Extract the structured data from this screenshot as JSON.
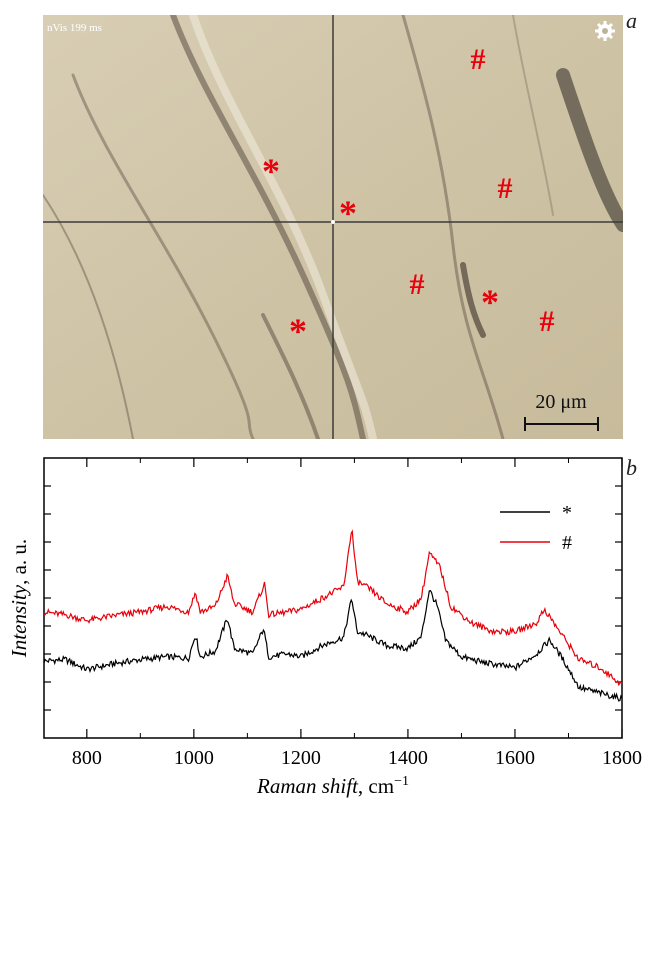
{
  "panel_a": {
    "label": "a",
    "acq_text": "nVis 199 ms",
    "icon": "gear-icon",
    "scale_bar_text": "20 μm",
    "asterisk_label": "*",
    "hash_label": "#",
    "marker_color": "#e8000b"
  },
  "panel_b_label": "b",
  "chart_data": {
    "type": "line",
    "xlabel_italic": "Raman shift",
    "xlabel_unit": ", cm",
    "xlabel_sup": "−1",
    "ylabel_italic": "Intensity",
    "ylabel_unit": ", a. u.",
    "xlim": [
      720,
      1800
    ],
    "xticks": [
      800,
      1000,
      1200,
      1400,
      1600,
      1800
    ],
    "y_tick_labels": "none",
    "legend_position": "top-right",
    "series": [
      {
        "name": "*",
        "color": "#000000",
        "points": [
          [
            720,
            0.275
          ],
          [
            760,
            0.28
          ],
          [
            800,
            0.245
          ],
          [
            850,
            0.265
          ],
          [
            900,
            0.28
          ],
          [
            950,
            0.29
          ],
          [
            990,
            0.285
          ],
          [
            1003,
            0.37
          ],
          [
            1012,
            0.29
          ],
          [
            1040,
            0.31
          ],
          [
            1063,
            0.43
          ],
          [
            1075,
            0.32
          ],
          [
            1110,
            0.3
          ],
          [
            1130,
            0.39
          ],
          [
            1140,
            0.29
          ],
          [
            1175,
            0.3
          ],
          [
            1200,
            0.29
          ],
          [
            1240,
            0.33
          ],
          [
            1280,
            0.36
          ],
          [
            1295,
            0.5
          ],
          [
            1305,
            0.38
          ],
          [
            1320,
            0.37
          ],
          [
            1360,
            0.33
          ],
          [
            1400,
            0.32
          ],
          [
            1425,
            0.36
          ],
          [
            1440,
            0.53
          ],
          [
            1455,
            0.47
          ],
          [
            1470,
            0.35
          ],
          [
            1500,
            0.29
          ],
          [
            1540,
            0.27
          ],
          [
            1600,
            0.25
          ],
          [
            1640,
            0.3
          ],
          [
            1665,
            0.35
          ],
          [
            1690,
            0.28
          ],
          [
            1720,
            0.18
          ],
          [
            1760,
            0.16
          ],
          [
            1800,
            0.14
          ]
        ]
      },
      {
        "name": "#",
        "color": "#e8000b",
        "points": [
          [
            720,
            0.45
          ],
          [
            760,
            0.44
          ],
          [
            800,
            0.42
          ],
          [
            860,
            0.44
          ],
          [
            900,
            0.45
          ],
          [
            950,
            0.47
          ],
          [
            990,
            0.45
          ],
          [
            1003,
            0.52
          ],
          [
            1012,
            0.45
          ],
          [
            1040,
            0.47
          ],
          [
            1063,
            0.58
          ],
          [
            1075,
            0.48
          ],
          [
            1110,
            0.45
          ],
          [
            1132,
            0.55
          ],
          [
            1140,
            0.44
          ],
          [
            1175,
            0.45
          ],
          [
            1200,
            0.46
          ],
          [
            1240,
            0.5
          ],
          [
            1280,
            0.54
          ],
          [
            1295,
            0.75
          ],
          [
            1305,
            0.56
          ],
          [
            1330,
            0.53
          ],
          [
            1360,
            0.48
          ],
          [
            1400,
            0.45
          ],
          [
            1425,
            0.5
          ],
          [
            1440,
            0.66
          ],
          [
            1460,
            0.61
          ],
          [
            1480,
            0.47
          ],
          [
            1520,
            0.41
          ],
          [
            1560,
            0.38
          ],
          [
            1600,
            0.38
          ],
          [
            1640,
            0.41
          ],
          [
            1655,
            0.46
          ],
          [
            1680,
            0.39
          ],
          [
            1720,
            0.28
          ],
          [
            1760,
            0.25
          ],
          [
            1800,
            0.19
          ]
        ]
      }
    ]
  }
}
